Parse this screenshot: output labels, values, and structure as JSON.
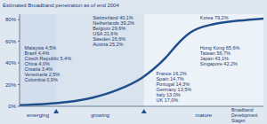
{
  "chart_data": {
    "type": "line",
    "title": "Estimated Broadband penetration as of end 2004",
    "x_label": "Broadband Development Stages",
    "x": [
      0,
      1,
      2,
      3,
      4,
      5,
      6,
      6.5,
      7,
      8,
      9,
      10
    ],
    "values": [
      1,
      2,
      4,
      8,
      15,
      26,
      45,
      58,
      68,
      76,
      79,
      81
    ],
    "color": "#1f4e8c",
    "xlim": [
      0,
      10
    ],
    "xticks": [
      {
        "value": 0.75,
        "label": "emerging"
      },
      {
        "value": 3.3,
        "label": "growing"
      },
      {
        "value": 7.55,
        "label": "mature"
      }
    ],
    "stage_bounds": [
      1.5,
      5.1
    ],
    "ylim": [
      0,
      85
    ],
    "yticks": [
      {
        "value": 0,
        "label": "0%"
      },
      {
        "value": 20,
        "label": "20%"
      },
      {
        "value": 40,
        "label": "40%"
      },
      {
        "value": 60,
        "label": "60%"
      },
      {
        "value": 80,
        "label": "80%"
      }
    ],
    "tick_labels": "y",
    "annotations": [
      {
        "x": 0.2,
        "y": 56,
        "texts": [
          "Malaysia 4,5%",
          "Brazil 4,4%",
          "Czech Republic 5,4%",
          "China 4,0%",
          "Croatia 3,4%",
          "Venezuela 2,5%",
          "Colombia 0,9%"
        ]
      },
      {
        "x": 5.6,
        "y": 33,
        "texts": [
          "France 16,2%",
          "Spain 14,7%",
          "Portugal 14,3%",
          "Germany 13,5%",
          "Italy 13,0%",
          "UK 17,0%"
        ]
      },
      {
        "x": 3.0,
        "y": 84,
        "texts": [
          "Switzerland 40,1%",
          "Netherlands 39,2%",
          "Belgium 29,6%",
          "USA 21,6%",
          "Sweden 26,6%",
          "Austria 25,2%"
        ]
      },
      {
        "x": 7.4,
        "y": 84,
        "texts": [
          "Korea 79,2%"
        ]
      },
      {
        "x": 7.4,
        "y": 56,
        "texts": [
          "Hong Kong 65,6%",
          "Taiwan 56,7%",
          "Japan 43,1%",
          "Singapore 42,2%"
        ]
      }
    ]
  }
}
